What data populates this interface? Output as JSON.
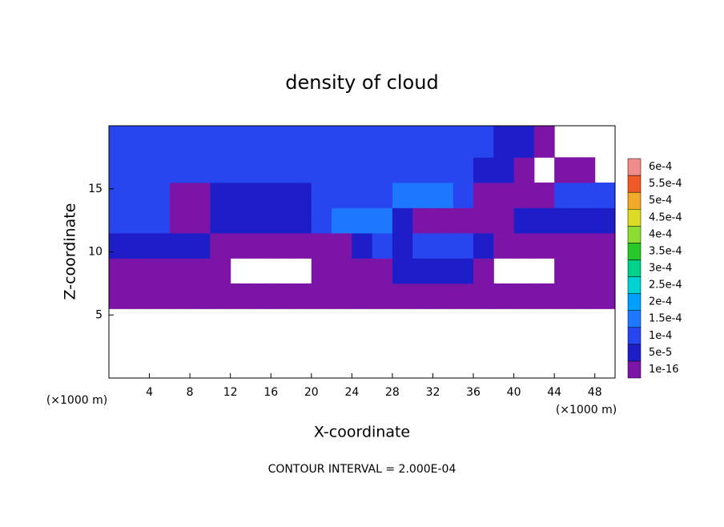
{
  "chart_data": {
    "type": "heatmap",
    "title": "density of cloud",
    "x_label": "X-coordinate",
    "y_label": "Z-coordinate",
    "x_unit": "(×1000 m)",
    "x_unit_right": "(×1000 m)",
    "footer": "CONTOUR INTERVAL = 2.000E-04",
    "xlim": [
      0,
      50
    ],
    "ylim": [
      0,
      20
    ],
    "xticks": [
      4,
      8,
      12,
      16,
      20,
      24,
      28,
      32,
      36,
      40,
      44,
      48
    ],
    "yticks": [
      5,
      10,
      15
    ],
    "xbins": [
      0,
      2,
      4,
      6,
      8,
      10,
      12,
      14,
      16,
      18,
      20,
      22,
      24,
      26,
      28,
      30,
      32,
      34,
      36,
      38,
      40,
      42,
      44,
      46,
      48,
      50
    ],
    "ybins": [
      0,
      5.5,
      7.5,
      9.5,
      11.5,
      13.5,
      15.5,
      17.5,
      20
    ],
    "z": [
      [
        null,
        null,
        null,
        null,
        null,
        null,
        null,
        null,
        null,
        null,
        null,
        null,
        null,
        null,
        null,
        null,
        null,
        null,
        null,
        null,
        null,
        null,
        null,
        null,
        null
      ],
      [
        3e-05,
        3e-05,
        3e-05,
        3e-05,
        3e-05,
        3e-05,
        3e-05,
        3e-05,
        3e-05,
        3e-05,
        3e-05,
        3e-05,
        3e-05,
        3e-05,
        3e-05,
        3e-05,
        3e-05,
        3e-05,
        3e-05,
        3e-05,
        3e-05,
        3e-05,
        3e-05,
        3e-05,
        3e-05
      ],
      [
        3e-05,
        3e-05,
        3e-05,
        3e-05,
        3e-05,
        3e-05,
        null,
        null,
        null,
        null,
        3e-05,
        3e-05,
        3e-05,
        3e-05,
        7e-05,
        7e-05,
        7e-05,
        7e-05,
        3e-05,
        null,
        null,
        null,
        3e-05,
        3e-05,
        3e-05
      ],
      [
        7e-05,
        7e-05,
        7e-05,
        7e-05,
        7e-05,
        3e-05,
        3e-05,
        3e-05,
        3e-05,
        3e-05,
        3e-05,
        3e-05,
        7e-05,
        0.00012,
        7e-05,
        0.00012,
        0.00012,
        0.00012,
        7e-05,
        3e-05,
        3e-05,
        3e-05,
        3e-05,
        3e-05,
        3e-05
      ],
      [
        0.00012,
        0.00012,
        0.00012,
        3e-05,
        3e-05,
        7e-05,
        7e-05,
        7e-05,
        7e-05,
        7e-05,
        0.00012,
        0.00017,
        0.00017,
        0.00017,
        7e-05,
        3e-05,
        3e-05,
        3e-05,
        3e-05,
        3e-05,
        7e-05,
        7e-05,
        7e-05,
        7e-05,
        7e-05
      ],
      [
        0.00012,
        0.00012,
        0.00012,
        3e-05,
        3e-05,
        7e-05,
        7e-05,
        7e-05,
        7e-05,
        7e-05,
        0.00012,
        0.00012,
        0.00012,
        0.00012,
        0.00017,
        0.00017,
        0.00017,
        0.00012,
        3e-05,
        3e-05,
        3e-05,
        3e-05,
        0.00012,
        0.00012,
        0.00012
      ],
      [
        0.00012,
        0.00012,
        0.00012,
        0.00012,
        0.00012,
        0.00012,
        0.00012,
        0.00012,
        0.00012,
        0.00012,
        0.00012,
        0.00012,
        0.00012,
        0.00012,
        0.00012,
        0.00012,
        0.00012,
        0.00012,
        7e-05,
        7e-05,
        3e-05,
        null,
        3e-05,
        3e-05,
        null
      ],
      [
        0.00012,
        0.00012,
        0.00012,
        0.00012,
        0.00012,
        0.00012,
        0.00012,
        0.00012,
        0.00012,
        0.00012,
        0.00012,
        0.00012,
        0.00012,
        0.00012,
        0.00012,
        0.00012,
        0.00012,
        0.00012,
        0.00012,
        7e-05,
        7e-05,
        3e-05,
        null,
        null,
        null
      ]
    ],
    "levels": [
      {
        "value": 1e-16,
        "label": "1e-16"
      },
      {
        "value": 5e-05,
        "label": "5e-5"
      },
      {
        "value": 0.0001,
        "label": "1e-4"
      },
      {
        "value": 0.00015,
        "label": "1.5e-4"
      },
      {
        "value": 0.0002,
        "label": "2e-4"
      },
      {
        "value": 0.00025,
        "label": "2.5e-4"
      },
      {
        "value": 0.0003,
        "label": "3e-4"
      },
      {
        "value": 0.00035,
        "label": "3.5e-4"
      },
      {
        "value": 0.0004,
        "label": "4e-4"
      },
      {
        "value": 0.00045,
        "label": "4.5e-4"
      },
      {
        "value": 0.0005,
        "label": "5e-4"
      },
      {
        "value": 0.00055,
        "label": "5.5e-4"
      },
      {
        "value": 0.0006,
        "label": "6e-4"
      }
    ],
    "colors": [
      "#7d14a8",
      "#1e1ec8",
      "#2846f0",
      "#1e78ff",
      "#00a0ff",
      "#00d2d2",
      "#00d28c",
      "#28c828",
      "#8cdc32",
      "#dcdc28",
      "#f0aa28",
      "#f05a28",
      "#f08c8c"
    ]
  }
}
